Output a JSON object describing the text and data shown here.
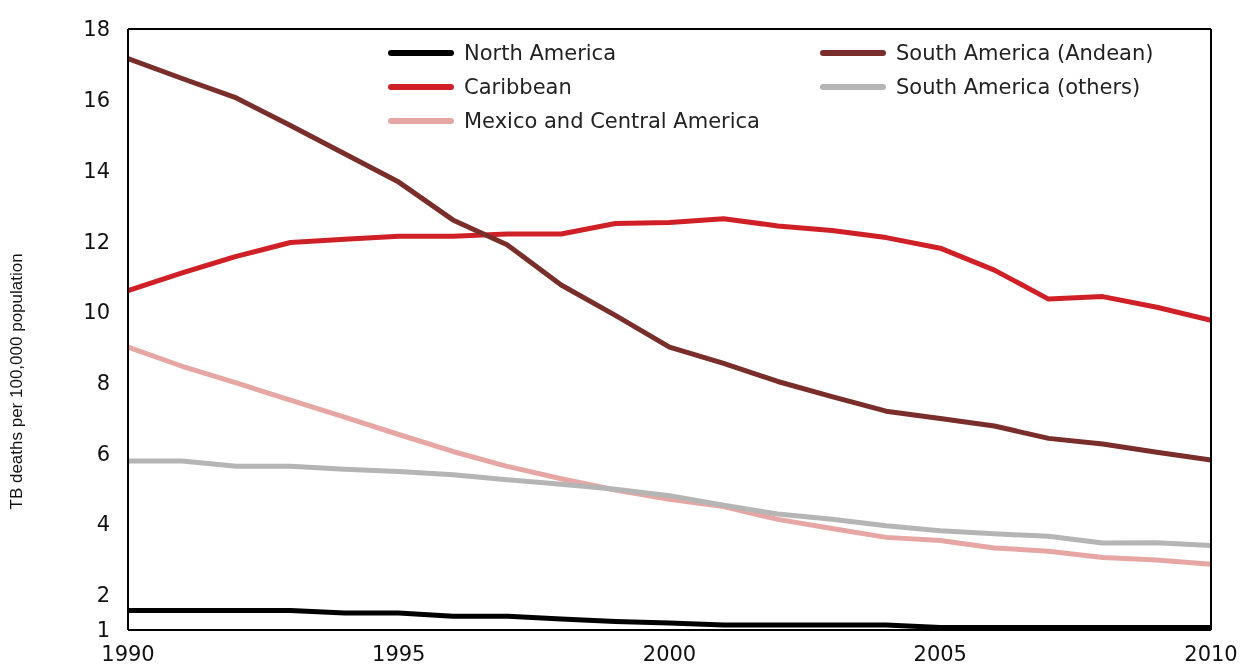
{
  "chart_data": {
    "type": "line",
    "ylabel": "TB deaths per 100,000 population",
    "x": [
      1990,
      1991,
      1992,
      1993,
      1994,
      1995,
      1996,
      1997,
      1998,
      1999,
      2000,
      2001,
      2002,
      2003,
      2004,
      2005,
      2006,
      2007,
      2008,
      2009,
      2010
    ],
    "series": [
      {
        "name": "North America",
        "color": "#000000",
        "values": [
          1.55,
          1.55,
          1.55,
          1.55,
          1.48,
          1.48,
          1.39,
          1.39,
          1.31,
          1.24,
          1.2,
          1.14,
          1.14,
          1.14,
          1.14,
          1.07,
          1.07,
          1.07,
          1.07,
          1.07,
          1.07
        ]
      },
      {
        "name": "Caribbean",
        "color": "#d02027",
        "values": [
          10.6,
          11.1,
          11.57,
          11.96,
          12.05,
          12.14,
          12.14,
          12.2,
          12.2,
          12.5,
          12.53,
          12.63,
          12.43,
          12.3,
          12.1,
          11.8,
          11.18,
          10.36,
          10.43,
          10.13,
          9.76
        ]
      },
      {
        "name": "Mexico and Central America",
        "color": "#e6a7a4",
        "values": [
          9.0,
          8.46,
          7.99,
          7.5,
          7.02,
          6.53,
          6.05,
          5.63,
          5.28,
          4.96,
          4.7,
          4.49,
          4.13,
          3.87,
          3.62,
          3.53,
          3.32,
          3.23,
          3.05,
          2.98,
          2.86
        ]
      },
      {
        "name": "South America (Andean)",
        "color": "#7a2e2b",
        "values": [
          17.16,
          16.6,
          16.05,
          15.27,
          14.47,
          13.67,
          12.6,
          11.9,
          10.76,
          9.9,
          9.0,
          8.54,
          8.03,
          7.6,
          7.19,
          6.98,
          6.77,
          6.42,
          6.26,
          6.03,
          5.81
        ]
      },
      {
        "name": "South America (others)",
        "color": "#b5b5b5",
        "values": [
          5.78,
          5.78,
          5.63,
          5.63,
          5.55,
          5.48,
          5.39,
          5.25,
          5.12,
          4.98,
          4.8,
          4.53,
          4.28,
          4.13,
          3.95,
          3.81,
          3.72,
          3.65,
          3.46,
          3.47,
          3.39
        ]
      }
    ],
    "xlim": [
      1990,
      2010
    ],
    "xticks": [
      1990,
      1995,
      2000,
      2005,
      2010
    ],
    "ylim": [
      1,
      18
    ],
    "yticks": [
      1,
      2,
      4,
      6,
      8,
      10,
      12,
      14,
      16,
      18
    ],
    "grid": false,
    "legend": "top",
    "marker": "none",
    "line_style": "solid"
  }
}
